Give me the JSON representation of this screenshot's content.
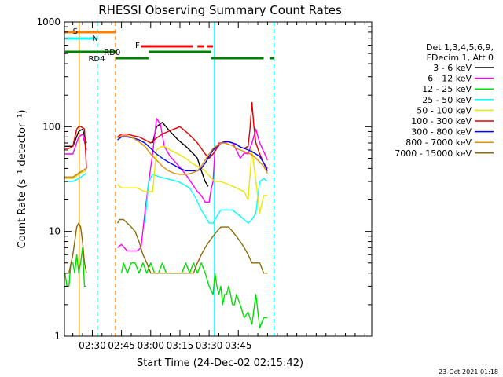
{
  "chart_data": {
    "type": "line",
    "title": "RHESSI Observing Summary Count Rates",
    "xlabel": "Start Time (24-Dec-02 02:15:42)",
    "ylabel": "Count Rate (s⁻¹ detector⁻¹)",
    "xlim": [
      15.7,
      173.5
    ],
    "ylim": [
      1,
      1000
    ],
    "y_scale": "log",
    "x_ticks": [
      30,
      45,
      60,
      75,
      90,
      105
    ],
    "x_tick_labels": [
      "02:30",
      "02:45",
      "03:00",
      "03:15",
      "03:30",
      "03:45"
    ],
    "y_ticks": [
      1,
      10,
      100,
      1000
    ],
    "y_tick_labels": [
      "1",
      "10",
      "100",
      "1000"
    ],
    "legend": {
      "placement": "right",
      "header": [
        "Det 1,3,4,5,6,9,",
        "FDecim 1, Att 0"
      ]
    },
    "timestamp": "23-Oct-2021 01:18",
    "series": [
      {
        "name": "3 - 6 keV",
        "color": "#000000",
        "x": [
          16,
          20,
          23,
          25,
          27,
          42,
          45,
          50,
          55,
          58,
          61,
          63,
          66,
          70,
          74,
          78,
          82,
          84,
          86,
          88,
          89.5
        ],
        "y": [
          65,
          65,
          90,
          95,
          70,
          null,
          null,
          null,
          null,
          null,
          70,
          100,
          110,
          90,
          75,
          65,
          55,
          50,
          38,
          30,
          27
        ]
      },
      {
        "name": "6 - 12 keV",
        "color": "#ff00ff",
        "x": [
          16,
          20,
          23,
          25,
          27,
          42,
          43,
          45,
          48,
          50,
          53,
          55,
          57,
          59,
          61,
          63,
          65,
          67,
          70,
          74,
          78,
          81,
          84,
          86,
          88,
          90,
          91,
          92,
          93,
          95,
          97,
          100,
          102,
          104,
          106,
          108,
          110,
          112,
          114,
          116,
          118,
          120
        ],
        "y": [
          55,
          55,
          80,
          85,
          60,
          null,
          7,
          7.5,
          6.5,
          6.5,
          6.5,
          7,
          15,
          30,
          55,
          120,
          105,
          65,
          52,
          43,
          35,
          29,
          24,
          22,
          19,
          19,
          25,
          30,
          60,
          70,
          70,
          72,
          70,
          60,
          50,
          56,
          55,
          70,
          95,
          70,
          58,
          48
        ]
      },
      {
        "name": "12 - 25 keV",
        "color": "#00e000",
        "x": [
          16,
          17,
          18,
          19,
          20,
          21,
          22,
          23,
          24,
          25,
          26,
          27,
          30,
          35,
          40,
          44,
          45,
          46,
          48,
          50,
          52,
          54,
          56,
          58,
          60,
          62,
          64,
          66,
          68,
          70,
          72,
          74,
          76,
          78,
          80,
          82,
          84,
          86,
          88,
          90,
          92,
          93,
          94,
          95,
          96,
          97,
          98,
          99,
          100,
          101,
          102,
          103,
          104,
          106,
          108,
          110,
          112,
          114,
          116,
          118,
          120
        ],
        "y": [
          4,
          3,
          3,
          5,
          5,
          4,
          6,
          4,
          5,
          7,
          3,
          3,
          null,
          null,
          null,
          null,
          4,
          5,
          4,
          5,
          5,
          4,
          5,
          4,
          5,
          4,
          4,
          5,
          4,
          4,
          4,
          4,
          4,
          5,
          4,
          5,
          4,
          5,
          4,
          3,
          2.5,
          4,
          3,
          2.5,
          3,
          2,
          2.5,
          2.5,
          3,
          2.5,
          2,
          2,
          2.5,
          2,
          1.5,
          1.7,
          1.3,
          2.5,
          1.2,
          1.5,
          1.5
        ]
      },
      {
        "name": "25 - 50 keV",
        "color": "#00ffff",
        "x": [
          16,
          20,
          23,
          25,
          27,
          42,
          43,
          45,
          48,
          50,
          53,
          55,
          57,
          59,
          61,
          63,
          65,
          68,
          71,
          74,
          77,
          80,
          83,
          86,
          88,
          90,
          92,
          94,
          96,
          98,
          100,
          102,
          104,
          106,
          108,
          110,
          112,
          114,
          116,
          118,
          120
        ],
        "y": [
          30,
          30,
          32,
          34,
          36,
          null,
          null,
          null,
          null,
          null,
          null,
          null,
          12,
          30,
          35,
          34,
          33,
          32,
          31,
          30,
          28,
          26,
          21,
          16,
          14,
          12,
          12,
          14,
          16,
          16,
          16,
          16,
          15,
          14,
          13,
          12,
          13,
          15,
          30,
          32,
          30
        ]
      },
      {
        "name": "50 - 100 keV",
        "color": "#e8e800",
        "x": [
          16,
          20,
          23,
          25,
          27,
          42,
          43,
          45,
          48,
          50,
          53,
          55,
          57,
          59,
          61,
          63,
          65,
          67,
          70,
          74,
          78,
          81,
          84,
          86,
          88,
          90,
          93,
          96,
          100,
          104,
          106,
          108,
          110,
          112,
          114,
          116,
          118,
          120
        ],
        "y": [
          32,
          32,
          35,
          37,
          38,
          null,
          28,
          26,
          26,
          26,
          26,
          25,
          24,
          24,
          24,
          60,
          64,
          65,
          60,
          55,
          50,
          45,
          42,
          40,
          38,
          34,
          30,
          30,
          28,
          26,
          25,
          24,
          20,
          60,
          30,
          15,
          22,
          22
        ]
      },
      {
        "name": "100 - 300 keV",
        "color": "#e00000",
        "x": [
          16,
          18,
          20,
          22,
          23,
          24,
          25,
          26,
          27,
          42,
          43,
          45,
          48,
          51,
          54,
          57,
          60,
          63,
          66,
          69,
          72,
          75,
          78,
          81,
          84,
          86,
          88,
          90,
          92,
          94,
          96,
          98,
          100,
          102,
          104,
          106,
          108,
          110,
          111,
          112,
          113,
          114,
          116,
          118,
          120
        ],
        "y": [
          62,
          62,
          65,
          95,
          100,
          100,
          98,
          95,
          40,
          null,
          80,
          85,
          85,
          82,
          80,
          75,
          70,
          78,
          85,
          90,
          95,
          100,
          90,
          80,
          70,
          62,
          55,
          50,
          55,
          62,
          70,
          72,
          72,
          70,
          68,
          64,
          62,
          65,
          95,
          170,
          100,
          70,
          55,
          45,
          40
        ]
      },
      {
        "name": "300 - 800 keV",
        "color": "#0000ff",
        "x": [
          16,
          20,
          23,
          25,
          27,
          42,
          43,
          45,
          48,
          51,
          54,
          57,
          60,
          63,
          66,
          69,
          72,
          75,
          78,
          81,
          84,
          86,
          88,
          90,
          92,
          94,
          96,
          98,
          100,
          102,
          104,
          106,
          108,
          110,
          112,
          114,
          116,
          118,
          120
        ],
        "y": [
          33,
          33,
          36,
          38,
          40,
          null,
          75,
          80,
          80,
          78,
          75,
          70,
          62,
          55,
          50,
          46,
          43,
          40,
          38,
          38,
          38,
          40,
          45,
          52,
          60,
          65,
          70,
          72,
          72,
          70,
          68,
          64,
          62,
          60,
          58,
          55,
          52,
          45,
          38
        ]
      },
      {
        "name": "800 - 7000 keV",
        "color": "#e09000",
        "x": [
          16,
          20,
          23,
          25,
          27,
          42,
          43,
          45,
          48,
          51,
          54,
          57,
          60,
          63,
          66,
          69,
          72,
          75,
          78,
          81,
          84,
          86,
          88,
          90,
          92,
          94,
          96,
          98,
          100,
          102,
          104,
          106,
          108,
          110,
          112,
          114,
          116,
          118,
          120
        ],
        "y": [
          33,
          33,
          36,
          38,
          40,
          null,
          78,
          82,
          82,
          78,
          72,
          65,
          55,
          48,
          42,
          38,
          36,
          35,
          35,
          36,
          38,
          42,
          48,
          55,
          62,
          66,
          70,
          70,
          68,
          66,
          62,
          60,
          58,
          56,
          54,
          50,
          46,
          42,
          36
        ]
      },
      {
        "name": "7000 - 15000 keV",
        "color": "#8b6b08",
        "x": [
          16,
          18,
          20,
          21,
          22,
          23,
          24,
          25,
          26,
          27,
          42,
          43,
          44,
          46,
          48,
          50,
          52,
          54,
          56,
          58,
          60,
          62,
          64,
          66,
          68,
          70,
          72,
          74,
          76,
          78,
          80,
          82,
          84,
          86,
          88,
          90,
          92,
          94,
          96,
          98,
          100,
          102,
          104,
          106,
          108,
          110,
          112,
          114,
          116,
          118,
          120
        ],
        "y": [
          4,
          4,
          6,
          8,
          11,
          12,
          11,
          8,
          5,
          4,
          null,
          12,
          13,
          13,
          12,
          11,
          10,
          8,
          6,
          5,
          4,
          4,
          4,
          4,
          4,
          4,
          4,
          4,
          4,
          4,
          4,
          4,
          5,
          6,
          7,
          8,
          9,
          10,
          11,
          11,
          11,
          10,
          9,
          8,
          7,
          6,
          5,
          5,
          5,
          4,
          4
        ]
      }
    ],
    "attenuator_bars": [
      {
        "label": "S",
        "color": "#ff8000",
        "segments": [
          [
            16,
            42
          ]
        ]
      },
      {
        "label": "N",
        "color": "#00ffff",
        "segments": [
          [
            16,
            32.6
          ]
        ]
      }
    ],
    "night_bars": [
      {
        "label": "RD0",
        "color": "#008000",
        "segments": [
          [
            16,
            42
          ],
          [
            59,
            91
          ]
        ]
      },
      {
        "label": "RD4",
        "color": "#008000",
        "segments": [
          [
            42,
            59
          ],
          [
            91,
            118
          ],
          [
            121,
            123.5
          ]
        ]
      }
    ],
    "flare_bars": [
      {
        "label": "F",
        "color": "#ff0000",
        "segments": [
          [
            55,
            81.5
          ],
          [
            84,
            87.5
          ],
          [
            89,
            92
          ]
        ]
      }
    ],
    "vlines": [
      {
        "x": 23.3,
        "color": "#e09000",
        "style": "solid"
      },
      {
        "x": 32.6,
        "color": "#00ffff",
        "style": "dashed"
      },
      {
        "x": 41.9,
        "color": "#ff8000",
        "style": "dashed"
      },
      {
        "x": 92.7,
        "color": "#00ffff",
        "style": "solid"
      },
      {
        "x": 123.3,
        "color": "#00ffff",
        "style": "dashed"
      }
    ]
  }
}
